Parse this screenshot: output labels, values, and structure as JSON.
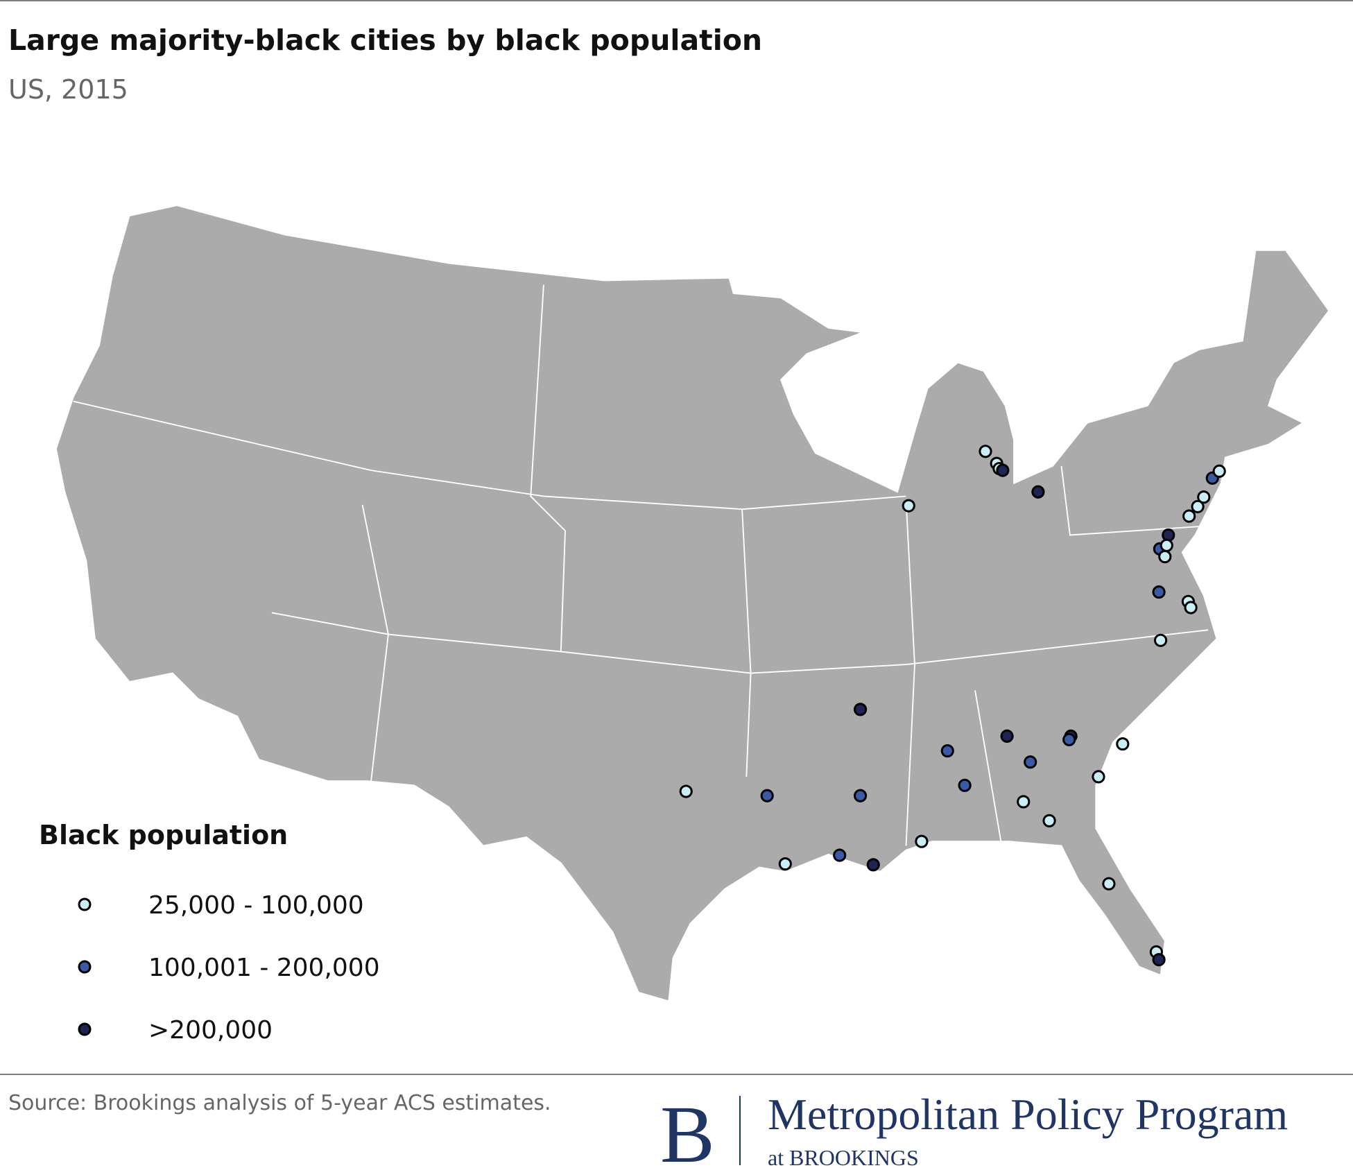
{
  "header": {
    "title": "Large majority-black cities by black population",
    "subtitle": "US, 2015"
  },
  "legend": {
    "title": "Black population",
    "items": [
      {
        "label": "25,000 - 100,000",
        "color": "#c9eef7"
      },
      {
        "label": "100,001 - 200,000",
        "color": "#3a5aa8"
      },
      {
        "label": ">200,000",
        "color": "#1c2554"
      }
    ]
  },
  "footer": {
    "source": "Source: Brookings analysis of 5-year ACS estimates.",
    "logo": {
      "letter": "B",
      "name": "Metropolitan Policy Program",
      "tagline": "at BROOKINGS"
    }
  }
}
